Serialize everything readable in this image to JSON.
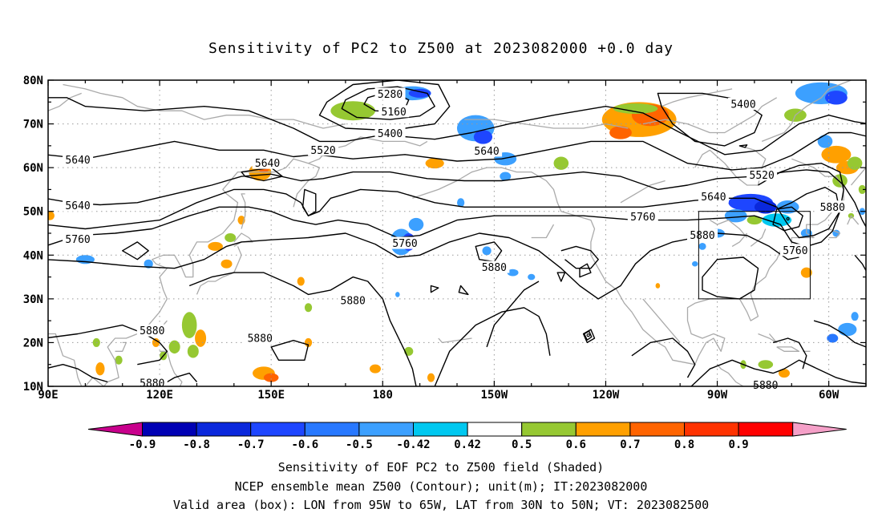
{
  "title": "Sensitivity of PC2 to Z500 at 2023082000 +0.0 day",
  "lat_labels": [
    "80N",
    "70N",
    "60N",
    "50N",
    "40N",
    "30N",
    "20N",
    "10N"
  ],
  "lon_labels": [
    "90E",
    "120E",
    "150E",
    "180",
    "150W",
    "120W",
    "90W",
    "60W"
  ],
  "contour_labels": [
    {
      "text": "5280",
      "lon": 182,
      "lat": 76.8
    },
    {
      "text": "5160",
      "lon": 183,
      "lat": 72.8
    },
    {
      "text": "5400",
      "lon": 182,
      "lat": 67.8
    },
    {
      "text": "5400",
      "lon": 277,
      "lat": 74.5
    },
    {
      "text": "5520",
      "lon": 164,
      "lat": 64.0
    },
    {
      "text": "5640",
      "lon": 208,
      "lat": 63.8
    },
    {
      "text": "5520",
      "lon": 282,
      "lat": 58.3
    },
    {
      "text": "5640",
      "lon": 98,
      "lat": 61.8
    },
    {
      "text": "5640",
      "lon": 149,
      "lat": 61.0
    },
    {
      "text": "5640",
      "lon": 98,
      "lat": 51.3
    },
    {
      "text": "5640",
      "lon": 269,
      "lat": 53.3
    },
    {
      "text": "5760",
      "lon": 98,
      "lat": 43.6
    },
    {
      "text": "5760",
      "lon": 186,
      "lat": 42.7
    },
    {
      "text": "5760",
      "lon": 250,
      "lat": 48.8
    },
    {
      "text": "5880",
      "lon": 301,
      "lat": 51.0
    },
    {
      "text": "5880",
      "lon": 266,
      "lat": 44.5
    },
    {
      "text": "5760",
      "lon": 291,
      "lat": 41.1
    },
    {
      "text": "5880",
      "lon": 210,
      "lat": 37.2
    },
    {
      "text": "5880",
      "lon": 172,
      "lat": 29.6
    },
    {
      "text": "5880",
      "lon": 118,
      "lat": 22.7
    },
    {
      "text": "5880",
      "lon": 147,
      "lat": 21.0
    },
    {
      "text": "5880",
      "lon": 118,
      "lat": 10.7
    },
    {
      "text": "5880",
      "lon": 283,
      "lat": 10.3
    }
  ],
  "colorbar": {
    "labels": [
      "-0.9",
      "-0.8",
      "-0.7",
      "-0.6",
      "-0.5",
      "-0.42",
      "0.42",
      "0.5",
      "0.6",
      "0.7",
      "0.8",
      "0.9"
    ],
    "colors": [
      "#c8008c",
      "#0000b4",
      "#0a28dc",
      "#1e46ff",
      "#2878ff",
      "#3ca0ff",
      "#00c8f0",
      "#ffffff",
      "#96c832",
      "#ffa000",
      "#ff6400",
      "#ff3200",
      "#ff0000",
      "#f5a0c8"
    ]
  },
  "valid_box": {
    "lon_min": 265,
    "lon_max": 295,
    "lat_min": 30,
    "lat_max": 50
  },
  "captions": [
    "Sensitivity of EOF PC2 to Z500 field (Shaded)",
    "NCEP ensemble mean Z500 (Contour); unit(m); IT:2023082000",
    "Valid area (box): LON from 95W to 65W, LAT from 30N to 50N; VT: 2023082500"
  ]
}
